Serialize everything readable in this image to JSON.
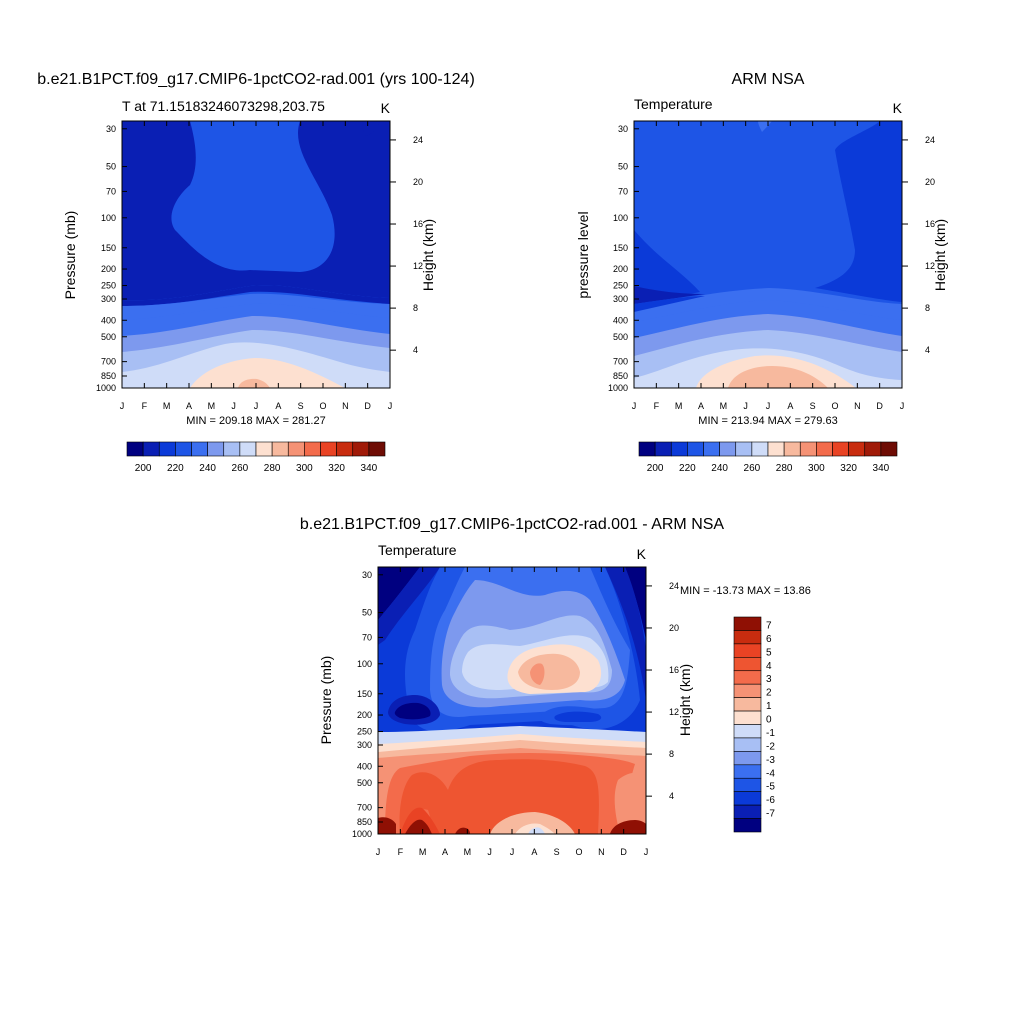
{
  "palette": {
    "abs": [
      "#000080",
      "#0a1fb4",
      "#0b3ad8",
      "#1e55e6",
      "#3b6ff0",
      "#7d99ee",
      "#a8bff4",
      "#cfdcf8",
      "#fde0d0",
      "#f7b99e",
      "#f59275",
      "#f36b4b",
      "#e94324",
      "#c82c0f",
      "#a01a08",
      "#6e0c04"
    ],
    "diff": [
      "#000080",
      "#0a1fb4",
      "#0b3ad8",
      "#1e55e6",
      "#3b6ff0",
      "#7d99ee",
      "#a8bff4",
      "#cfdcf8",
      "#fde0d0",
      "#f7b99e",
      "#f59275",
      "#f36b4b",
      "#ee5531",
      "#e94324",
      "#c82c0f",
      "#8f1004"
    ]
  },
  "chart_data": [
    {
      "type": "heatmap",
      "title": "b.e21.B1PCT.f09_g17.CMIP6-1pctCO2-rad.001 (yrs 100-124)",
      "subtitle_left": "T at 71.15183246073298,203.75",
      "subtitle_right": "K",
      "ylabel": "Pressure (mb)",
      "ylabel_right": "Height (km)",
      "x_ticklabels": [
        "J",
        "F",
        "M",
        "A",
        "M",
        "J",
        "J",
        "A",
        "S",
        "O",
        "N",
        "D",
        "J"
      ],
      "y_ticklabels": [
        "30",
        "50",
        "70",
        "100",
        "150",
        "200",
        "250",
        "300",
        "400",
        "500",
        "700",
        "850",
        "1000"
      ],
      "y_right_ticklabels": [
        "24",
        "20",
        "16",
        "12",
        "8",
        "4"
      ],
      "summary": "MIN = 209.18 MAX = 281.27",
      "colorbar_labels": [
        "200",
        "220",
        "240",
        "260",
        "280",
        "300",
        "320",
        "340"
      ],
      "levels": [
        195,
        200,
        205,
        210,
        215,
        220,
        225,
        230,
        235,
        240,
        245,
        250,
        255,
        260,
        265,
        270,
        275,
        280,
        285,
        290,
        295,
        300,
        305,
        310,
        315,
        320,
        325,
        330,
        335,
        340,
        345,
        350
      ],
      "levels_note": "colorbar boundaries: 200 to 340 step 10",
      "y_log": true,
      "z_units": "K"
    },
    {
      "type": "heatmap",
      "title": "ARM NSA",
      "subtitle_left": "Temperature",
      "subtitle_right": "K",
      "ylabel": "pressure level",
      "ylabel_right": "Height (km)",
      "x_ticklabels": [
        "J",
        "F",
        "M",
        "A",
        "M",
        "J",
        "J",
        "A",
        "S",
        "O",
        "N",
        "D",
        "J"
      ],
      "y_ticklabels": [
        "30",
        "50",
        "70",
        "100",
        "150",
        "200",
        "250",
        "300",
        "400",
        "500",
        "700",
        "850",
        "1000"
      ],
      "y_right_ticklabels": [
        "24",
        "20",
        "16",
        "12",
        "8",
        "4"
      ],
      "summary": "MIN = 213.94 MAX = 279.63",
      "colorbar_labels": [
        "200",
        "220",
        "240",
        "260",
        "280",
        "300",
        "320",
        "340"
      ],
      "y_log": true,
      "z_units": "K"
    },
    {
      "type": "heatmap",
      "title": "b.e21.B1PCT.f09_g17.CMIP6-1pctCO2-rad.001 - ARM NSA",
      "subtitle_left": "Temperature",
      "subtitle_right": "K",
      "ylabel": "Pressure (mb)",
      "ylabel_right": "Height (km)",
      "x_ticklabels": [
        "J",
        "F",
        "M",
        "A",
        "M",
        "J",
        "J",
        "A",
        "S",
        "O",
        "N",
        "D",
        "J"
      ],
      "y_ticklabels": [
        "30",
        "50",
        "70",
        "100",
        "150",
        "200",
        "250",
        "300",
        "400",
        "500",
        "700",
        "850",
        "1000"
      ],
      "y_right_ticklabels": [
        "24",
        "20",
        "16",
        "12",
        "8",
        "4"
      ],
      "summary": "MIN = -13.73 MAX =  13.86",
      "colorbar_labels": [
        "7",
        "6",
        "5",
        "4",
        "3",
        "2",
        "1",
        "0",
        "-1",
        "-2",
        "-3",
        "-4",
        "-5",
        "-6",
        "-7"
      ],
      "y_log": true,
      "z_units": "K"
    }
  ]
}
